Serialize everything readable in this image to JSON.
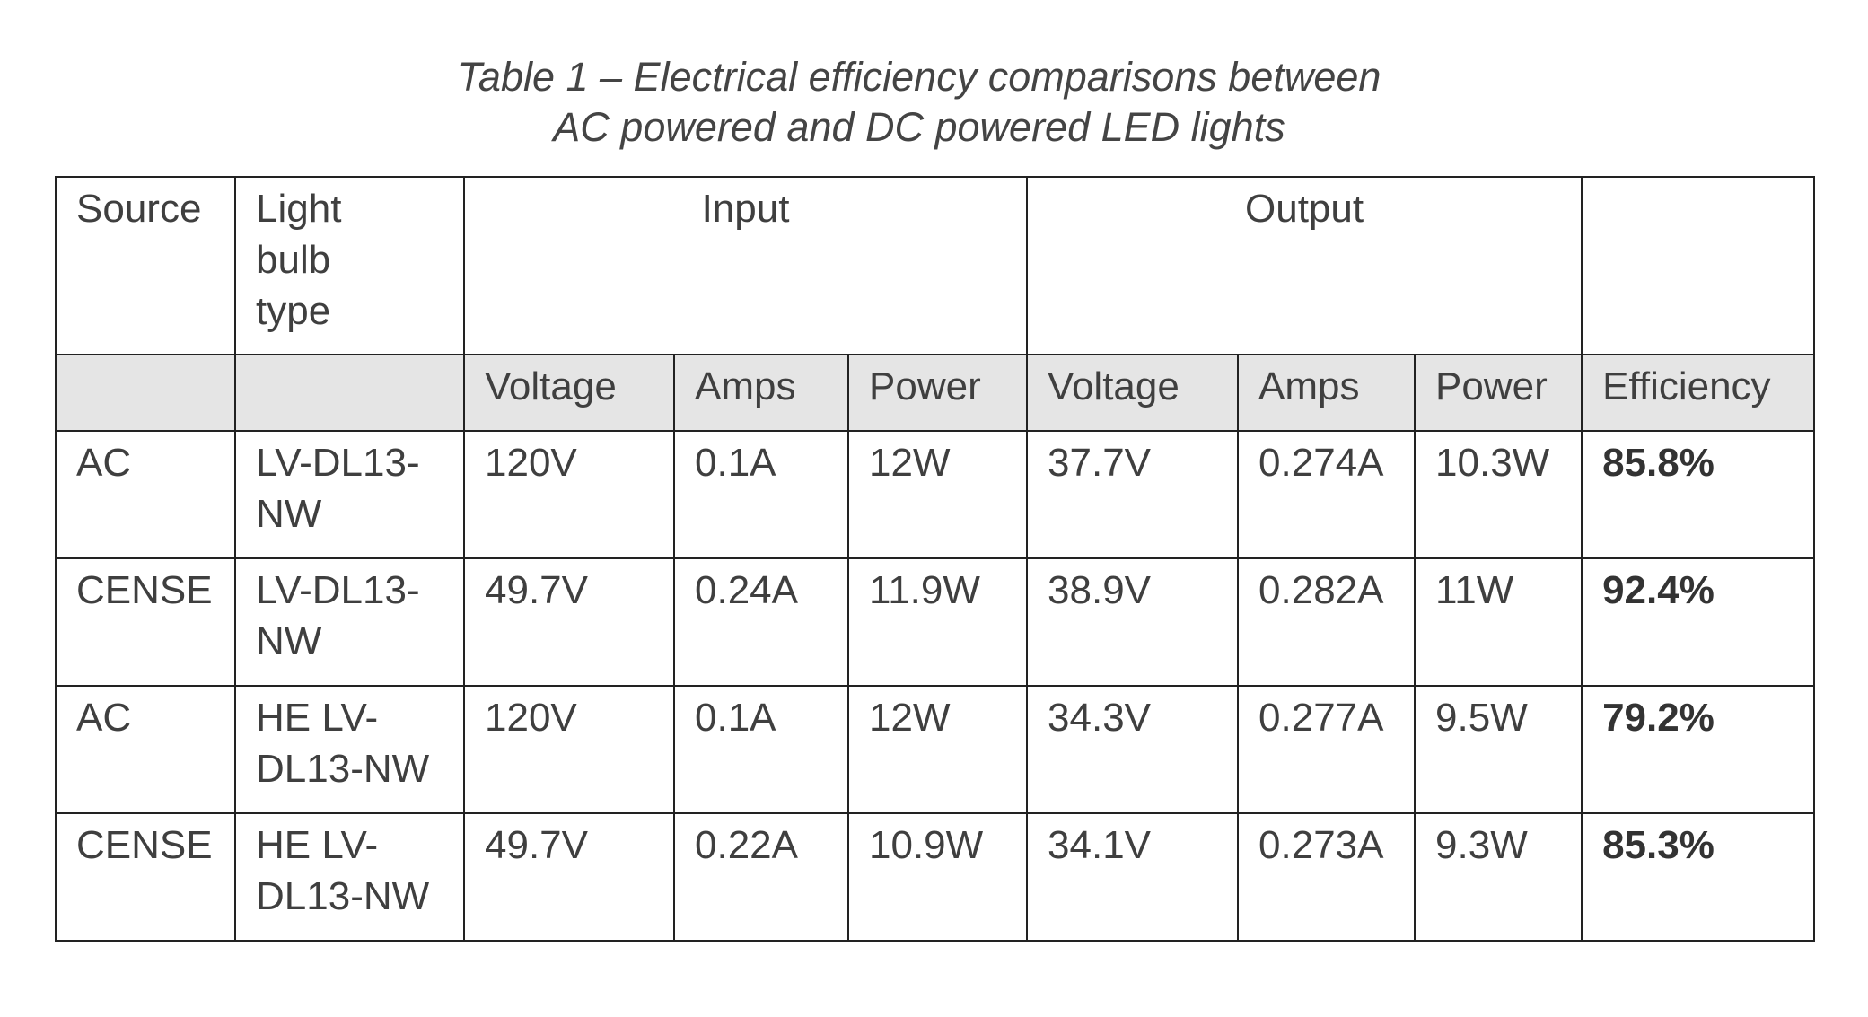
{
  "caption": {
    "line1": "Table 1 – Electrical efficiency comparisons between",
    "line2": "AC powered and DC powered LED lights"
  },
  "header": {
    "source": "Source",
    "bulb_type": "Light bulb type",
    "input": "Input",
    "output": "Output",
    "sub": [
      "Voltage",
      "Amps",
      "Power",
      "Voltage",
      "Amps",
      "Power",
      "Efficiency"
    ]
  },
  "rows": [
    {
      "source": "AC",
      "bulb": "LV-DL13-NW",
      "in_v": "120V",
      "in_a": "0.1A",
      "in_p": "12W",
      "out_v": "37.7V",
      "out_a": "0.274A",
      "out_p": "10.3W",
      "eff": "85.8%"
    },
    {
      "source": "CENSE",
      "bulb": "LV-DL13-NW",
      "in_v": "49.7V",
      "in_a": "0.24A",
      "in_p": "11.9W",
      "out_v": "38.9V",
      "out_a": "0.282A",
      "out_p": "11W",
      "eff": "92.4%"
    },
    {
      "source": "AC",
      "bulb": "HE LV-DL13-NW",
      "in_v": "120V",
      "in_a": "0.1A",
      "in_p": "12W",
      "out_v": "34.3V",
      "out_a": "0.277A",
      "out_p": "9.5W",
      "eff": "79.2%"
    },
    {
      "source": "CENSE",
      "bulb": "HE LV-DL13-NW",
      "in_v": "49.7V",
      "in_a": "0.22A",
      "in_p": "10.9W",
      "out_v": "34.1V",
      "out_a": "0.273A",
      "out_p": "9.3W",
      "eff": "85.3%"
    }
  ]
}
